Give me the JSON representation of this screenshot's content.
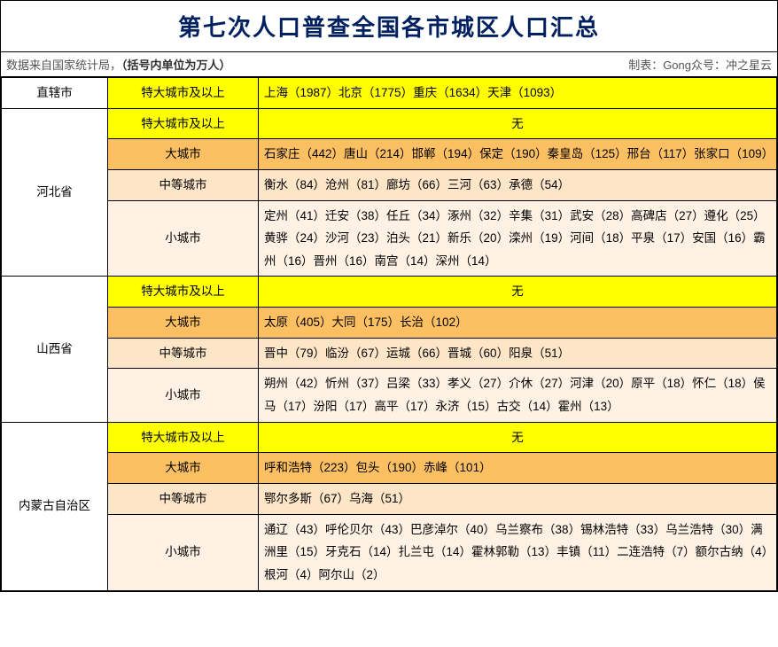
{
  "title": "第七次人口普查全国各市城区人口汇总",
  "sub_left_1": "数据来自国家统计局，",
  "sub_left_2": "（括号内单位为万人）",
  "sub_right": "制表：Gong众号：冲之星云",
  "colors": {
    "title_text": "#002060",
    "yellow": "#ffff00",
    "orange": "#fcc063",
    "peach": "#fde5c8",
    "cream": "#fff2e5",
    "border": "#000000"
  },
  "category_labels": {
    "mega": "特大城市及以上",
    "big": "大城市",
    "mid": "中等城市",
    "small": "小城市"
  },
  "none_text": "无",
  "provinces": {
    "zhixia": {
      "name": "直辖市",
      "mega": "上海（1987）北京（1775）重庆（1634）天津（1093）"
    },
    "hebei": {
      "name": "河北省",
      "mega": "无",
      "big": "石家庄（442）唐山（214）邯郸（194）保定（190）秦皇岛（125）邢台（117）张家口（109）",
      "mid": "衡水（84）沧州（81）廊坊（66）三河（63）承德（54）",
      "small": "定州（41）迁安（38）任丘（34）涿州（32）辛集（31）武安（28）高碑店（27）遵化（25）黄骅（24）沙河（23）泊头（21）新乐（20）滦州（19）河间（18）平泉（17）安国（16）霸州（16）晋州（16）南宫（14）深州（14）"
    },
    "shanxi": {
      "name": "山西省",
      "mega": "无",
      "big": "太原（405）大同（175）长治（102）",
      "mid": "晋中（79）临汾（67）运城（66）晋城（60）阳泉（51）",
      "small": "朔州（42）忻州（37）吕梁（33）孝义（27）介休（27）河津（20）原平（18）怀仁（18）侯马（17）汾阳（17）高平（17）永济（15）古交（14）霍州（13）"
    },
    "neimeng": {
      "name": "内蒙古自治区",
      "mega": "无",
      "big": "呼和浩特（223）包头（190）赤峰（101）",
      "mid": "鄂尔多斯（67）乌海（51）",
      "small": "通辽（43）呼伦贝尔（43）巴彦淖尔（40）乌兰察布（38）锡林浩特（33）乌兰浩特（30）满洲里（15）牙克石（14）扎兰屯（14）霍林郭勒（13）丰镇（11）二连浩特（7）额尔古纳（4）根河（4）阿尔山（2）"
    }
  }
}
